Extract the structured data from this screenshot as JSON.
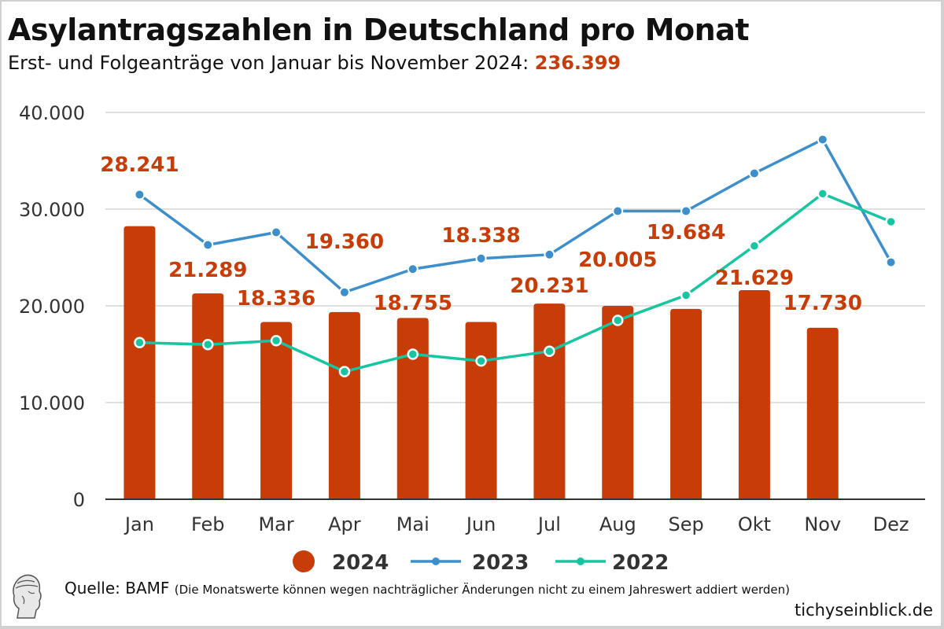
{
  "header": {
    "title": "Asylantragszahlen in Deutschland pro Monat",
    "subtitle_prefix": "Erst- und Folgeanträge von Januar bis November 2024: ",
    "subtitle_total": "236.399"
  },
  "footer": {
    "source_label": "Quelle: BAMF",
    "source_note": "(Die Monatswerte können wegen nachträglicher Änderungen nicht zu einem Jahreswert addiert werden)",
    "site": "tichyseinblick.de",
    "logo_icon": "greek-head-logo-icon"
  },
  "colors": {
    "bar_2024": "#c83c08",
    "line_2023": "#3d8fcc",
    "line_2022": "#17c5a0",
    "label": "#c83c08",
    "grid": "#e0e0e0",
    "axis": "#333333"
  },
  "chart_data": {
    "type": "bar",
    "title": "Asylantragszahlen in Deutschland pro Monat",
    "subtitle": "Erst- und Folgeanträge von Januar bis November 2024: 236.399",
    "xlabel": "",
    "ylabel": "",
    "ylim": [
      0,
      40000
    ],
    "yticks": [
      0,
      10000,
      20000,
      30000,
      40000
    ],
    "ytick_labels": [
      "0",
      "10.000",
      "20.000",
      "30.000",
      "40.000"
    ],
    "grid": true,
    "legend_position": "bottom-center",
    "categories": [
      "Jan",
      "Feb",
      "Mar",
      "Apr",
      "Mai",
      "Jun",
      "Jul",
      "Aug",
      "Sep",
      "Okt",
      "Nov",
      "Dez"
    ],
    "series": [
      {
        "name": "2024",
        "type": "bar",
        "values": [
          28241,
          21289,
          18336,
          19360,
          18755,
          18338,
          20231,
          20005,
          19684,
          21629,
          17730,
          null
        ],
        "labels": [
          "28.241",
          "21.289",
          "18.336",
          "19.360",
          "18.755",
          "18.338",
          "20.231",
          "20.005",
          "19.684",
          "21.629",
          "17.730",
          ""
        ]
      },
      {
        "name": "2023",
        "type": "line",
        "values": [
          31500,
          26300,
          27600,
          21400,
          23800,
          24900,
          25300,
          29800,
          29800,
          33700,
          37200,
          24500
        ]
      },
      {
        "name": "2022",
        "type": "line",
        "values": [
          16200,
          16000,
          16400,
          13200,
          15000,
          14300,
          15300,
          18500,
          21100,
          26200,
          31600,
          28700
        ]
      }
    ]
  }
}
